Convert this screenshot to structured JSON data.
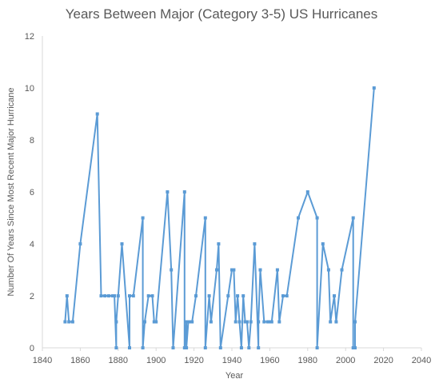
{
  "chart_data": {
    "type": "line",
    "title": "Years Between Major (Category 3-5) US Hurricanes",
    "xlabel": "Year",
    "ylabel": "Number Of Years Since Most Recent Major Hurricane",
    "xlim": [
      1840,
      2040
    ],
    "ylim": [
      0,
      12
    ],
    "xticks": [
      1840,
      1860,
      1880,
      1900,
      1920,
      1940,
      1960,
      1980,
      2000,
      2020,
      2040
    ],
    "yticks": [
      0,
      2,
      4,
      6,
      8,
      10,
      12
    ],
    "grid": "none",
    "legend": "none",
    "series": [
      {
        "color": "#5b9bd5",
        "x": [
          1852,
          1853,
          1854,
          1856,
          1860,
          1869,
          1871,
          1873,
          1875,
          1877,
          1878,
          1879,
          1879,
          1880,
          1882,
          1886,
          1886,
          1888,
          1893,
          1893,
          1894,
          1896,
          1898,
          1899,
          1900,
          1906,
          1908,
          1909,
          1915,
          1915,
          1916,
          1916,
          1917,
          1918,
          1919,
          1921,
          1926,
          1926,
          1928,
          1929,
          1932,
          1933,
          1934,
          1938,
          1940,
          1941,
          1942,
          1943,
          1944,
          1945,
          1946,
          1947,
          1948,
          1949,
          1950,
          1952,
          1954,
          1954,
          1955,
          1957,
          1959,
          1960,
          1961,
          1964,
          1965,
          1967,
          1969,
          1975,
          1980,
          1985,
          1985,
          1988,
          1991,
          1992,
          1994,
          1995,
          1998,
          2004,
          2004,
          2005,
          2005,
          2015
        ],
        "y": [
          1,
          2,
          1,
          1,
          4,
          9,
          2,
          2,
          2,
          2,
          2,
          0,
          1,
          2,
          4,
          0,
          2,
          2,
          5,
          0,
          1,
          2,
          2,
          1,
          1,
          6,
          3,
          0,
          6,
          0,
          1,
          0,
          1,
          1,
          1,
          2,
          5,
          0,
          2,
          1,
          3,
          4,
          0,
          2,
          3,
          3,
          1,
          2,
          1,
          0,
          2,
          1,
          1,
          0,
          1,
          4,
          0,
          1,
          3,
          1,
          1,
          1,
          1,
          3,
          1,
          2,
          2,
          5,
          6,
          5,
          0,
          4,
          3,
          1,
          2,
          1,
          3,
          5,
          0,
          0,
          1,
          10
        ]
      }
    ]
  }
}
